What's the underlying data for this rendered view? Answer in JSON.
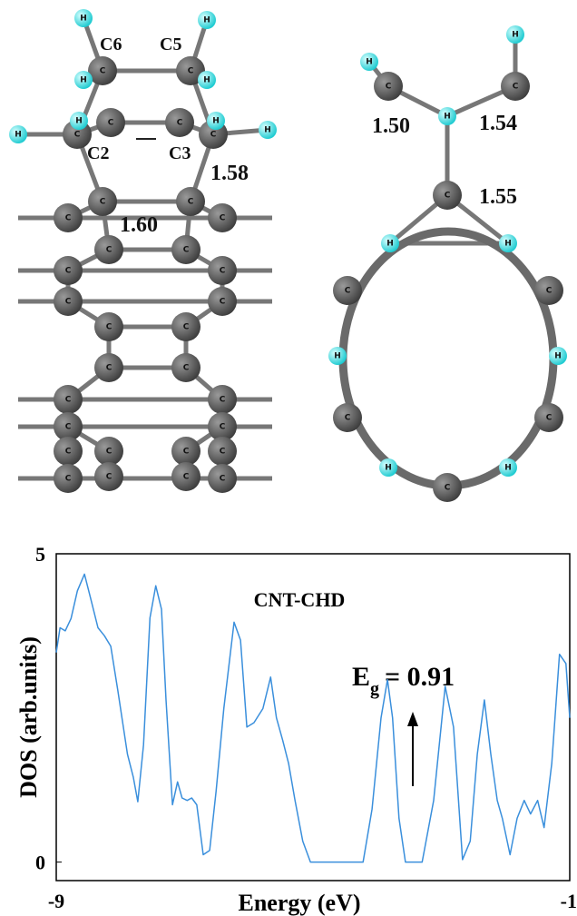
{
  "structures": {
    "left": {
      "atoms": [
        "H",
        "H",
        "C",
        "C",
        "H",
        "H",
        "H",
        "H",
        "C",
        "H",
        "C",
        "H",
        "C",
        "C",
        "C",
        "C",
        "C",
        "C",
        "C",
        "C",
        "C",
        "C",
        "C",
        "C",
        "C",
        "C",
        "C",
        "C",
        "C",
        "C",
        "C",
        "C",
        "C",
        "C",
        "C",
        "C",
        "C",
        "C",
        "C",
        "C"
      ],
      "labels": [
        "C6",
        "C5",
        "C2",
        "C3"
      ],
      "bond_lengths": [
        "1.58",
        "1.60"
      ]
    },
    "right": {
      "atoms": [
        "H",
        "H",
        "C",
        "C",
        "C",
        "H",
        "H",
        "H",
        "C",
        "C",
        "H",
        "H",
        "C",
        "C",
        "H",
        "H",
        "C"
      ],
      "bond_lengths": [
        "1.50",
        "1.54",
        "1.55"
      ]
    }
  },
  "chart_data": {
    "type": "line",
    "title": "CNT-CHD",
    "x_label": "Energy (eV)",
    "y_label": "DOS (arb.units)",
    "annotation": {
      "symbol": "E",
      "subscript": "g",
      "text": "= 0.91"
    },
    "xlim": [
      -9,
      -1
    ],
    "xticks": [
      -9,
      -1
    ],
    "ylim": [
      -0.3,
      5
    ],
    "yticks": [
      0,
      5
    ],
    "color": "#3a8fdc",
    "x": [
      -9.0,
      -8.94,
      -8.86,
      -8.77,
      -8.67,
      -8.56,
      -8.46,
      -8.35,
      -8.25,
      -8.15,
      -8.04,
      -7.89,
      -7.8,
      -7.73,
      -7.64,
      -7.54,
      -7.45,
      -7.36,
      -7.29,
      -7.19,
      -7.11,
      -7.04,
      -6.96,
      -6.89,
      -6.81,
      -6.71,
      -6.61,
      -6.51,
      -6.39,
      -6.23,
      -6.13,
      -6.03,
      -5.92,
      -5.78,
      -5.66,
      -5.57,
      -5.47,
      -5.38,
      -5.28,
      -5.16,
      -5.04,
      -4.22,
      -4.08,
      -3.94,
      -3.84,
      -3.76,
      -3.66,
      -3.56,
      -3.3,
      -3.12,
      -2.94,
      -2.81,
      -2.67,
      -2.55,
      -2.44,
      -2.33,
      -2.23,
      -2.13,
      -2.05,
      -1.93,
      -1.82,
      -1.71,
      -1.61,
      -1.5,
      -1.4,
      -1.28,
      -1.16,
      -1.06,
      -1.0
    ],
    "values": [
      3.4,
      3.8,
      3.75,
      3.95,
      4.4,
      4.67,
      4.26,
      3.8,
      3.67,
      3.5,
      2.78,
      1.75,
      1.38,
      0.98,
      1.9,
      3.96,
      4.48,
      4.1,
      2.63,
      0.93,
      1.3,
      1.04,
      1.0,
      1.04,
      0.93,
      0.12,
      0.19,
      1.15,
      2.49,
      3.89,
      3.6,
      2.19,
      2.26,
      2.49,
      3.0,
      2.34,
      1.97,
      1.6,
      1.0,
      0.34,
      0,
      0,
      0.86,
      2.34,
      2.96,
      2.34,
      0.71,
      0,
      0,
      1.0,
      2.85,
      2.19,
      0.04,
      0.34,
      1.75,
      2.63,
      1.75,
      1.0,
      0.71,
      0.12,
      0.71,
      1.0,
      0.78,
      1.0,
      0.56,
      1.6,
      3.37,
      3.22,
      2.34
    ]
  }
}
